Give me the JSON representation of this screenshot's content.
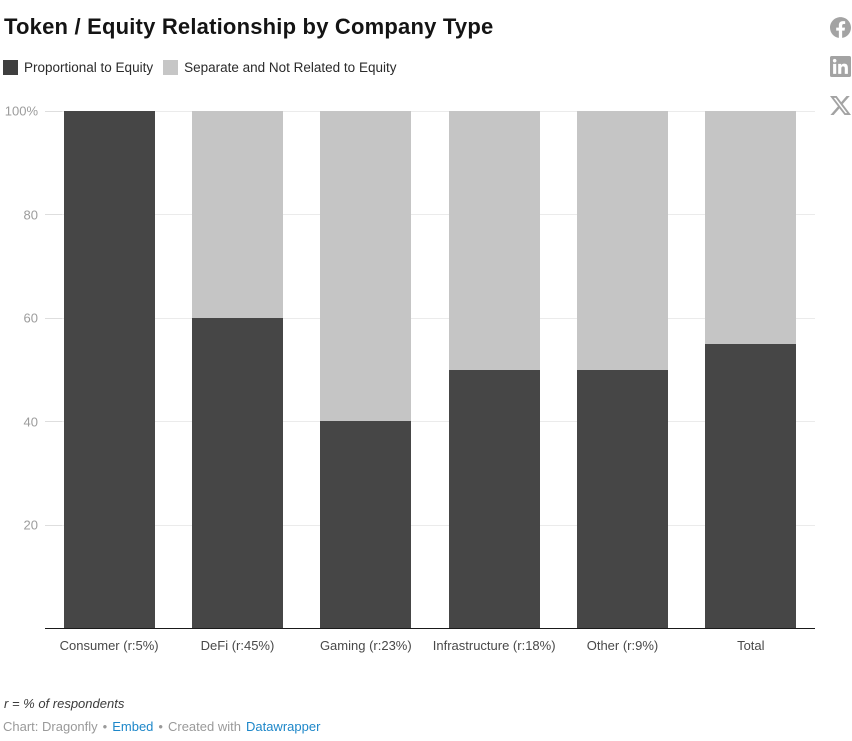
{
  "title": "Token / Equity Relationship by Company Type",
  "legend": {
    "items": [
      {
        "label": "Proportional to Equity",
        "color": "#3f3f3f"
      },
      {
        "label": "Separate and Not Related to Equity",
        "color": "#c6c6c6"
      }
    ]
  },
  "chart_data": {
    "type": "bar",
    "stacked": true,
    "title": "Token / Equity Relationship by Company Type",
    "categories": [
      "Consumer (r:5%)",
      "DeFi (r:45%)",
      "Gaming (r:23%)",
      "Infrastructure (r:18%)",
      "Other (r:9%)",
      "Total"
    ],
    "series": [
      {
        "name": "Proportional to Equity",
        "color": "#464646",
        "values": [
          100,
          60,
          40,
          50,
          50,
          55
        ]
      },
      {
        "name": "Separate and Not Related to Equity",
        "color": "#c5c5c5",
        "values": [
          0,
          40,
          60,
          50,
          50,
          45
        ]
      }
    ],
    "xlabel": "",
    "ylabel": "",
    "ylim": [
      0,
      100
    ],
    "yticks": [
      {
        "label": "100%",
        "value": 100
      },
      {
        "label": "80",
        "value": 80
      },
      {
        "label": "60",
        "value": 60
      },
      {
        "label": "40",
        "value": 40
      },
      {
        "label": "20",
        "value": 20
      }
    ],
    "grid": true,
    "legend_position": "top"
  },
  "footer": {
    "note": "r = % of respondents",
    "byline": {
      "prefix": "Chart: Dragonfly",
      "separator": "•",
      "embed_link": "Embed",
      "created_with": "Created with",
      "tool_link": "Datawrapper"
    }
  },
  "social": {
    "icons": [
      "facebook-icon",
      "linkedin-icon",
      "x-icon"
    ]
  },
  "colors": {
    "bar_dark": "#464646",
    "bar_light": "#c5c5c5",
    "link_blue": "#1d87c9",
    "icon_gray": "#a3a3a3",
    "gridline": "#ebebeb",
    "axis_line": "#1a1a1a"
  }
}
